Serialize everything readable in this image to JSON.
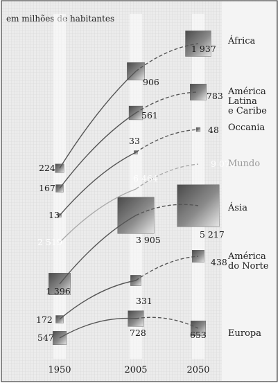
{
  "chart_data": {
    "type": "line",
    "unit_label": "em milhões de habitantes",
    "x": [
      "1950",
      "2005",
      "2050"
    ],
    "series": [
      {
        "name": "África",
        "values": [
          224,
          906,
          1937
        ],
        "color": "#555555"
      },
      {
        "name": "América Latina e Caribe",
        "values": [
          167,
          561,
          783
        ],
        "color": "#555555"
      },
      {
        "name": "Oceania",
        "values": [
          13,
          33,
          48
        ],
        "color": "#555555"
      },
      {
        "name": "Mundo",
        "values": [
          2519,
          6464,
          9076
        ],
        "color": "#aaaaaa"
      },
      {
        "name": "Ásia",
        "values": [
          1396,
          3905,
          5217
        ],
        "color": "#555555"
      },
      {
        "name": "América do Norte",
        "values": [
          172,
          331,
          438
        ],
        "color": "#555555"
      },
      {
        "name": "Europa",
        "values": [
          547,
          728,
          653
        ],
        "color": "#555555"
      }
    ],
    "value_labels": {
      "África": [
        "224",
        "906",
        "1 937"
      ],
      "América Latina e Caribe": [
        "167",
        "561",
        "783"
      ],
      "Oceania": [
        "13",
        "33",
        "48"
      ],
      "Mundo": [
        "2 519",
        "6 464",
        "9 076"
      ],
      "Ásia": [
        "1 396",
        "3 905",
        "5 217"
      ],
      "América do Norte": [
        "172",
        "331",
        "438"
      ],
      "Europa": [
        "547",
        "728",
        "653"
      ]
    },
    "region_labels": [
      {
        "series": "África",
        "lines": [
          "África"
        ]
      },
      {
        "series": "América Latina e Caribe",
        "lines": [
          "América",
          "Latina",
          "e Caribe"
        ]
      },
      {
        "series": "Oceania",
        "lines": [
          "Occania"
        ]
      },
      {
        "series": "Mundo",
        "lines": [
          "Mundo"
        ]
      },
      {
        "series": "Ásia",
        "lines": [
          "Ásia"
        ]
      },
      {
        "series": "América do Norte",
        "lines": [
          "América",
          "do Norte"
        ]
      },
      {
        "series": "Europa",
        "lines": [
          "Europa"
        ]
      }
    ],
    "line_style": "solid 1950–2005, dashed 2005–2050",
    "marker": "shaded square, area proportional to population",
    "grid": true,
    "grid_style": "fine gray grid"
  }
}
